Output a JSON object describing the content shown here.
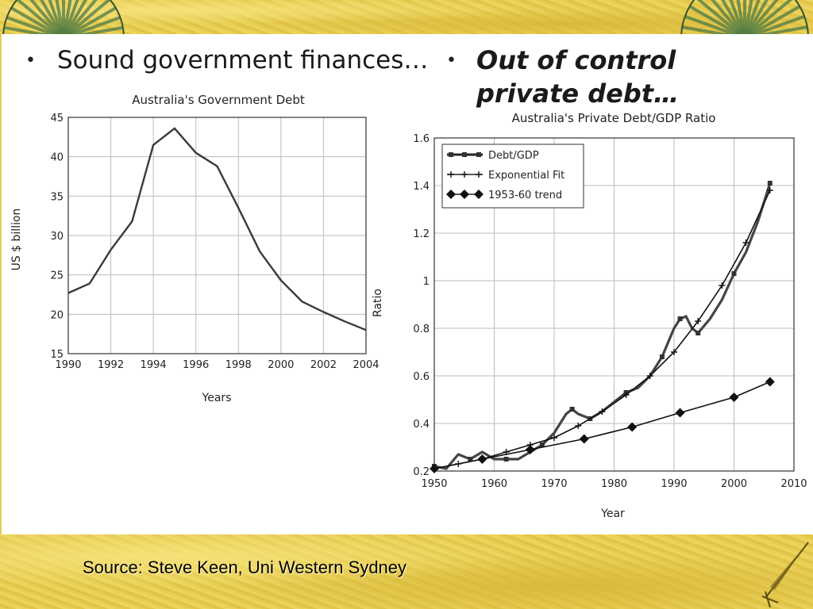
{
  "slide": {
    "left_bullet_marker": "•",
    "right_bullet_marker": "•",
    "left_heading": "Sound government finances…",
    "right_heading_line1": "Out of control",
    "right_heading_line2": "private debt…",
    "source": "Source: Steve Keen, Uni Western Sydney"
  },
  "colors": {
    "band": "#e6cb50",
    "fan": "#4f7b45",
    "line": "#3a3a3a"
  },
  "icons": {
    "corner_left": "folding-fan-icon",
    "corner_right": "folding-fan-icon",
    "quill": "quill-pen-icon"
  },
  "chart_data": [
    {
      "type": "line",
      "title": "Australia's Government Debt",
      "xlabel": "Years",
      "ylabel": "US $ billion",
      "xlim": [
        1990,
        2004
      ],
      "ylim": [
        15,
        45
      ],
      "xticks": [
        1990,
        1992,
        1994,
        1996,
        1998,
        2000,
        2002,
        2004
      ],
      "yticks": [
        15,
        20,
        25,
        30,
        35,
        40,
        45
      ],
      "grid": true,
      "series": [
        {
          "x": [
            1990,
            1991,
            1992,
            1993,
            1994,
            1995,
            1996,
            1997,
            1998,
            1999,
            2000,
            2001,
            2002,
            2003,
            2004
          ],
          "values": [
            22.7,
            23.9,
            28.2,
            31.8,
            41.5,
            43.6,
            40.5,
            38.8,
            33.5,
            28.0,
            24.3,
            21.6,
            20.3,
            19.1,
            18.0
          ]
        }
      ]
    },
    {
      "type": "line",
      "title": "Australia's Private Debt/GDP Ratio",
      "xlabel": "Year",
      "ylabel": "Ratio",
      "xlim": [
        1950,
        2010
      ],
      "ylim": [
        0.2,
        1.6
      ],
      "xticks": [
        1950,
        1960,
        1970,
        1980,
        1990,
        2000,
        2010
      ],
      "yticks": [
        0.2,
        0.4,
        0.6,
        0.8,
        1,
        1.2,
        1.4,
        1.6
      ],
      "grid": true,
      "legend_position": "top-left",
      "series": [
        {
          "name": "Debt/GDP",
          "marker": "square",
          "x": [
            1950,
            1952,
            1954,
            1956,
            1958,
            1960,
            1962,
            1964,
            1966,
            1968,
            1970,
            1972,
            1973,
            1974,
            1975,
            1976,
            1978,
            1980,
            1982,
            1984,
            1986,
            1988,
            1989,
            1990,
            1991,
            1992,
            1993,
            1994,
            1996,
            1998,
            2000,
            2002,
            2004,
            2006
          ],
          "values": [
            0.22,
            0.21,
            0.27,
            0.25,
            0.28,
            0.25,
            0.25,
            0.25,
            0.28,
            0.31,
            0.36,
            0.44,
            0.46,
            0.44,
            0.43,
            0.42,
            0.45,
            0.49,
            0.53,
            0.55,
            0.6,
            0.68,
            0.74,
            0.8,
            0.84,
            0.85,
            0.8,
            0.78,
            0.84,
            0.92,
            1.03,
            1.12,
            1.25,
            1.41
          ]
        },
        {
          "name": "Exponential Fit",
          "marker": "plus",
          "x": [
            1950,
            1954,
            1958,
            1962,
            1966,
            1970,
            1974,
            1978,
            1982,
            1986,
            1990,
            1994,
            1998,
            2002,
            2006
          ],
          "values": [
            0.21,
            0.23,
            0.25,
            0.28,
            0.31,
            0.34,
            0.39,
            0.45,
            0.52,
            0.6,
            0.7,
            0.83,
            0.98,
            1.16,
            1.38
          ]
        },
        {
          "name": "1953-60 trend",
          "marker": "diamond",
          "x": [
            1950,
            1958,
            1966,
            1975,
            1983,
            1991,
            2000,
            2006
          ],
          "values": [
            0.21,
            0.25,
            0.29,
            0.335,
            0.385,
            0.445,
            0.51,
            0.575
          ]
        }
      ]
    }
  ]
}
